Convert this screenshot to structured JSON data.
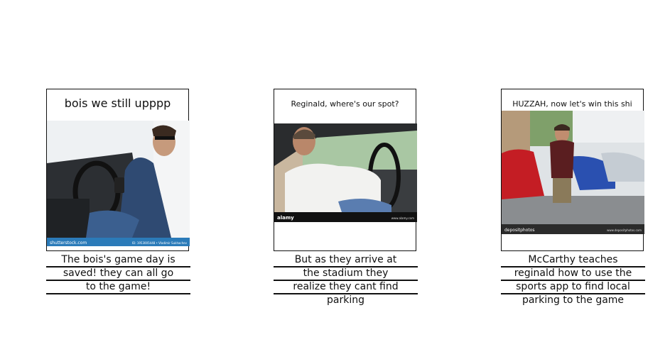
{
  "panels": [
    {
      "top_caption": "bois we still upppp",
      "bottom_caption_lines": [
        "The bois's game day is",
        "saved! they can all go",
        "to the game!"
      ],
      "photo": {
        "watermark_left": "shutterstock.com",
        "watermark_right": "ID: 1953005448 • Vladimir Sukhachev"
      }
    },
    {
      "top_caption": "Reginald, where's our spot?",
      "bottom_caption_lines": [
        "But as they arrive at",
        "the stadium they",
        "realize they cant find",
        "parking"
      ],
      "photo": {
        "watermark_left": "alamy",
        "watermark_right": "www.alamy.com"
      }
    },
    {
      "top_caption": "HUZZAH, now let's win this shi",
      "bottom_caption_lines": [
        "McCarthy teaches",
        "reginald how to use the",
        "sports app to find local",
        "parking to the game"
      ],
      "photo": {
        "watermark_left": "depositphotos",
        "watermark_right": "www.depositphotos.com"
      }
    }
  ],
  "colors": {
    "border": "#111111",
    "stock_band_blue": "#2b7bb9",
    "stock_band_dark": "#1a1a1a"
  }
}
